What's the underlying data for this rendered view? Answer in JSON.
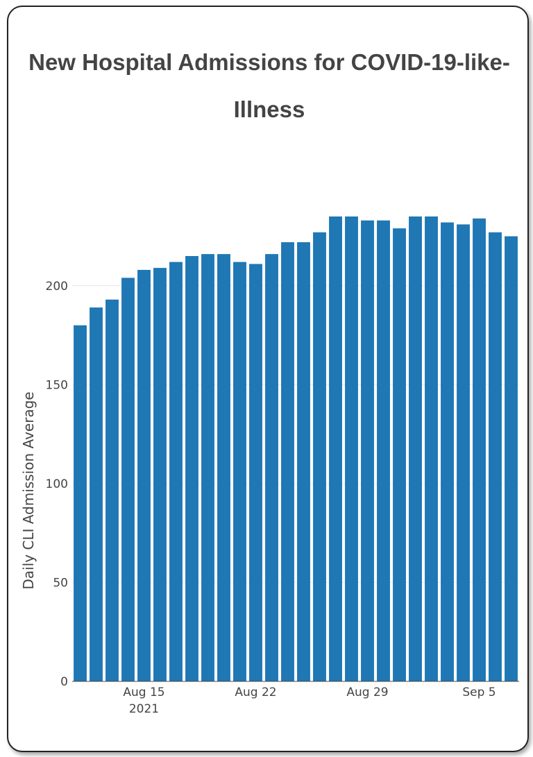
{
  "chart_data": {
    "type": "bar",
    "title": "New Hospital Admissions for COVID-19-like-Illness",
    "xlabel": "",
    "ylabel": "Daily CLI Admission Average",
    "x": [
      "2021-08-11",
      "2021-08-12",
      "2021-08-13",
      "2021-08-14",
      "2021-08-15",
      "2021-08-16",
      "2021-08-17",
      "2021-08-18",
      "2021-08-19",
      "2021-08-20",
      "2021-08-21",
      "2021-08-22",
      "2021-08-23",
      "2021-08-24",
      "2021-08-25",
      "2021-08-26",
      "2021-08-27",
      "2021-08-28",
      "2021-08-29",
      "2021-08-30",
      "2021-08-31",
      "2021-09-01",
      "2021-09-02",
      "2021-09-03",
      "2021-09-04",
      "2021-09-05",
      "2021-09-06",
      "2021-09-07"
    ],
    "values": [
      180,
      189,
      193,
      204,
      208,
      209,
      212,
      215,
      216,
      216,
      212,
      211,
      216,
      222,
      222,
      227,
      235,
      235,
      233,
      233,
      229,
      235,
      235,
      232,
      231,
      234,
      227,
      225
    ],
    "ylim": [
      0,
      235
    ],
    "y_ticks": [
      0,
      50,
      100,
      150,
      200
    ],
    "x_ticks": [
      {
        "date": "2021-08-15",
        "label": "Aug 15",
        "sublabel": "2021"
      },
      {
        "date": "2021-08-22",
        "label": "Aug 22",
        "sublabel": ""
      },
      {
        "date": "2021-08-29",
        "label": "Aug 29",
        "sublabel": ""
      },
      {
        "date": "2021-09-05",
        "label": "Sep 5",
        "sublabel": ""
      }
    ],
    "bar_color": "#1f77b4",
    "grid": true,
    "legend": "none"
  }
}
